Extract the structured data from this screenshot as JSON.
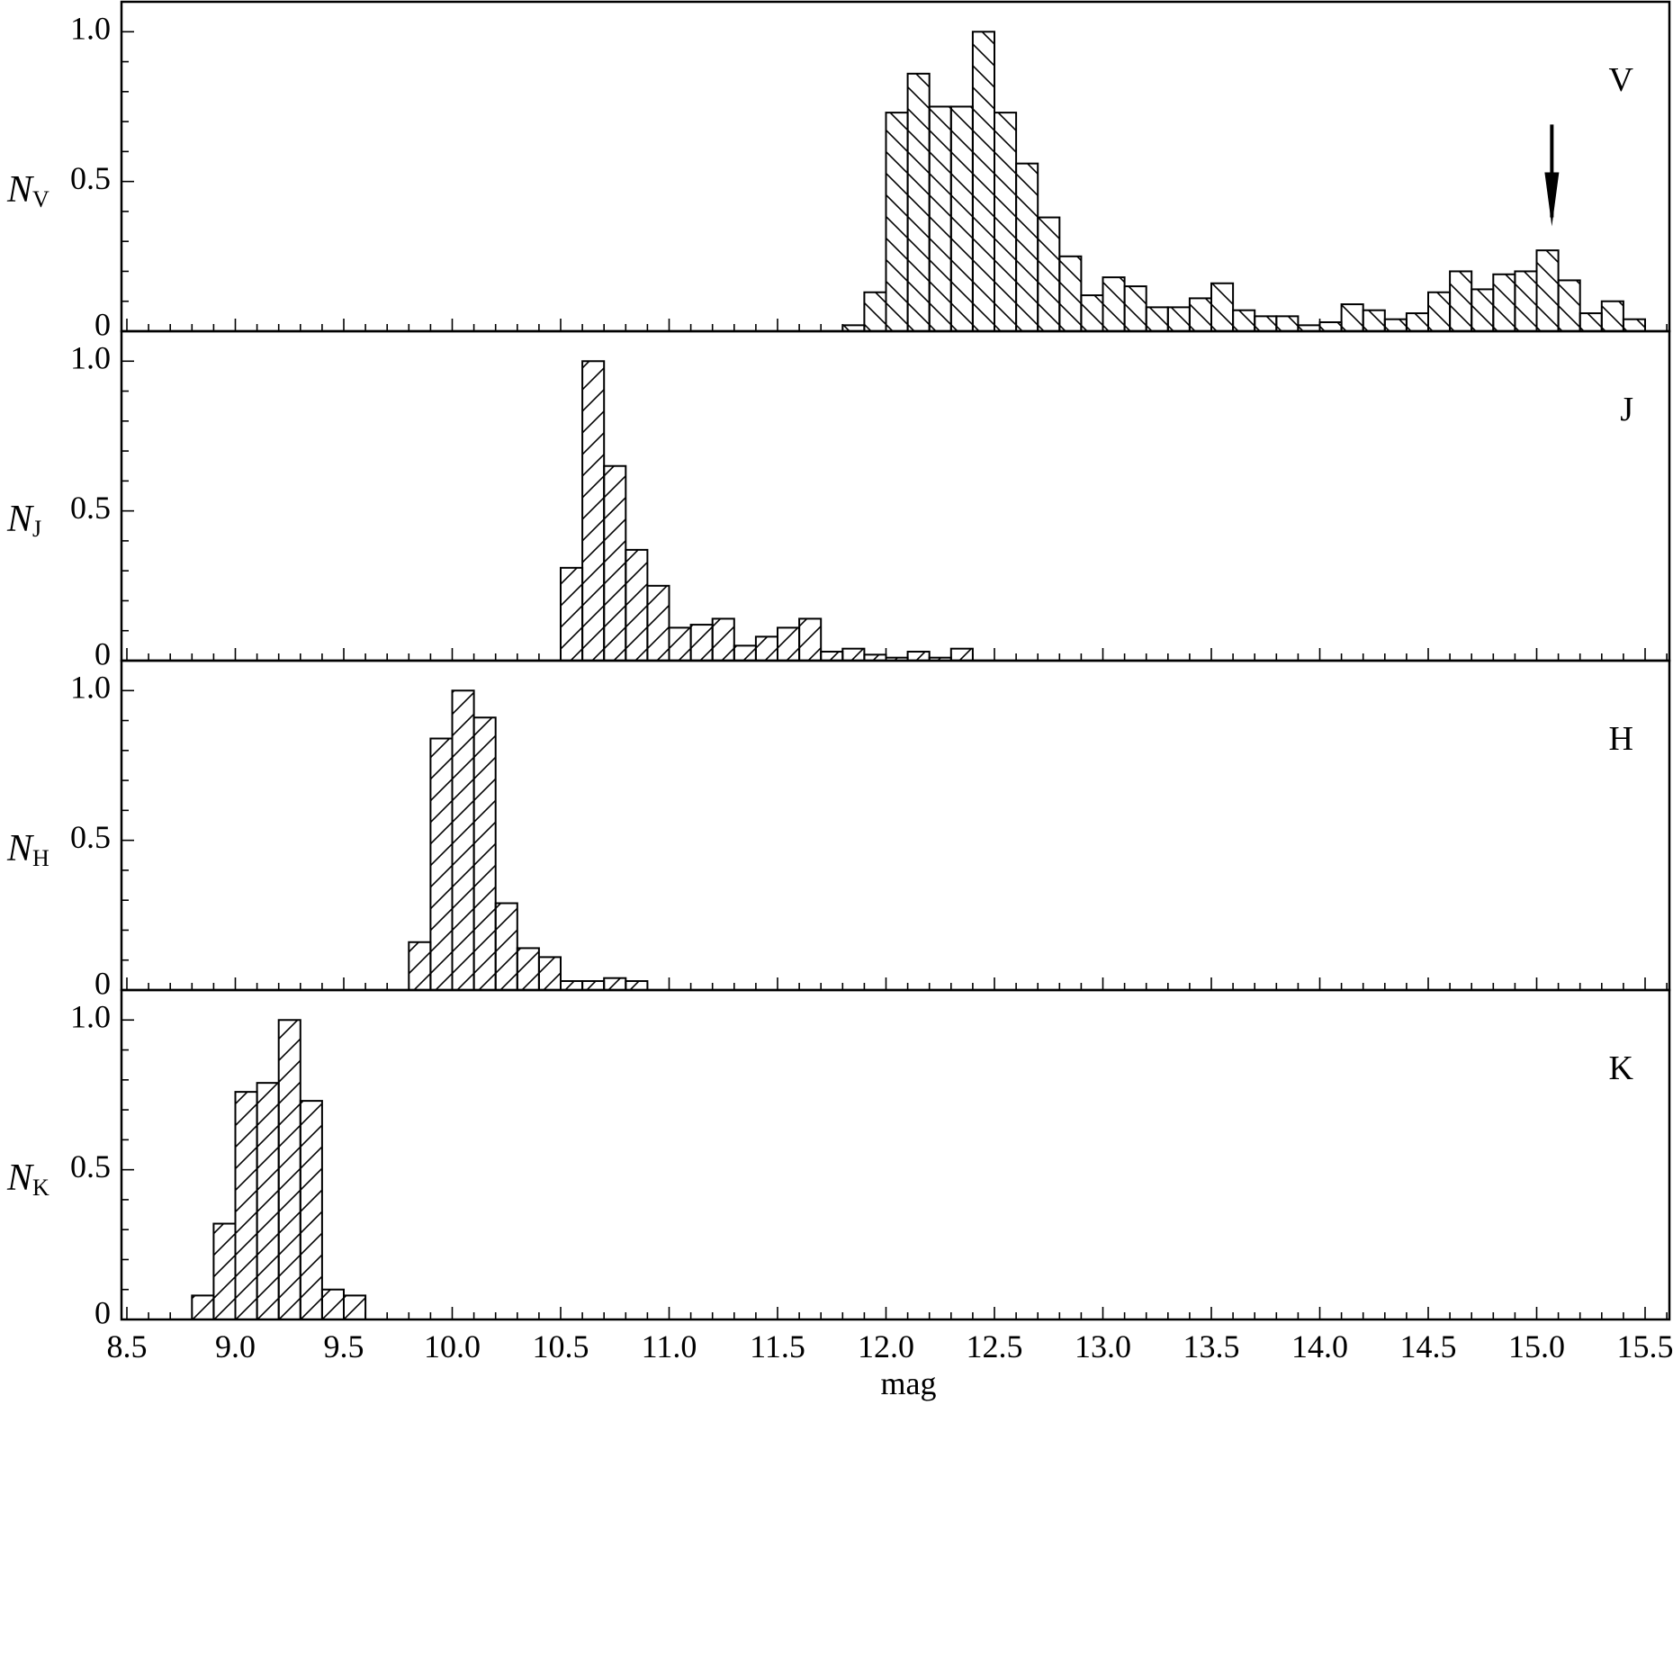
{
  "chart_data": {
    "type": "bar",
    "xlabel": "mag",
    "xlim": [
      8.5,
      15.7
    ],
    "xticks": [
      "8.5",
      "9.0",
      "9.5",
      "10.0",
      "10.5",
      "11.0",
      "11.5",
      "12.0",
      "12.5",
      "13.0",
      "13.5",
      "14.0",
      "14.5",
      "15.0",
      "15.5"
    ],
    "bin_width": 0.1,
    "ylim": [
      0,
      1.1
    ],
    "yticks": [
      "0",
      "0.5",
      "1.0"
    ],
    "grid": false,
    "annotations": [
      {
        "panel": "V",
        "type": "arrow-down",
        "x": 15.07,
        "y_from": 0.69,
        "y_to": 0.35
      }
    ],
    "panels": [
      {
        "name": "V",
        "ylabel": "N",
        "ylabel_sub": "V",
        "hatch": "backslash",
        "bins": [
          {
            "x": 11.85,
            "y": 0.02
          },
          {
            "x": 11.95,
            "y": 0.13
          },
          {
            "x": 12.05,
            "y": 0.73
          },
          {
            "x": 12.15,
            "y": 0.86
          },
          {
            "x": 12.25,
            "y": 0.75
          },
          {
            "x": 12.35,
            "y": 0.75
          },
          {
            "x": 12.45,
            "y": 1.0
          },
          {
            "x": 12.55,
            "y": 0.73
          },
          {
            "x": 12.65,
            "y": 0.56
          },
          {
            "x": 12.75,
            "y": 0.38
          },
          {
            "x": 12.85,
            "y": 0.25
          },
          {
            "x": 12.95,
            "y": 0.12
          },
          {
            "x": 13.05,
            "y": 0.18
          },
          {
            "x": 13.15,
            "y": 0.15
          },
          {
            "x": 13.25,
            "y": 0.08
          },
          {
            "x": 13.35,
            "y": 0.08
          },
          {
            "x": 13.45,
            "y": 0.11
          },
          {
            "x": 13.55,
            "y": 0.16
          },
          {
            "x": 13.65,
            "y": 0.07
          },
          {
            "x": 13.75,
            "y": 0.05
          },
          {
            "x": 13.85,
            "y": 0.05
          },
          {
            "x": 13.95,
            "y": 0.02
          },
          {
            "x": 14.05,
            "y": 0.03
          },
          {
            "x": 14.15,
            "y": 0.09
          },
          {
            "x": 14.25,
            "y": 0.07
          },
          {
            "x": 14.35,
            "y": 0.04
          },
          {
            "x": 14.45,
            "y": 0.06
          },
          {
            "x": 14.55,
            "y": 0.13
          },
          {
            "x": 14.65,
            "y": 0.2
          },
          {
            "x": 14.75,
            "y": 0.14
          },
          {
            "x": 14.85,
            "y": 0.19
          },
          {
            "x": 14.95,
            "y": 0.2
          },
          {
            "x": 15.05,
            "y": 0.27
          },
          {
            "x": 15.15,
            "y": 0.17
          },
          {
            "x": 15.25,
            "y": 0.06
          },
          {
            "x": 15.35,
            "y": 0.1
          },
          {
            "x": 15.45,
            "y": 0.04
          }
        ]
      },
      {
        "name": "J",
        "ylabel": "N",
        "ylabel_sub": "J",
        "hatch": "slash",
        "bins": [
          {
            "x": 10.55,
            "y": 0.31
          },
          {
            "x": 10.65,
            "y": 1.0
          },
          {
            "x": 10.75,
            "y": 0.65
          },
          {
            "x": 10.85,
            "y": 0.37
          },
          {
            "x": 10.95,
            "y": 0.25
          },
          {
            "x": 11.05,
            "y": 0.11
          },
          {
            "x": 11.15,
            "y": 0.12
          },
          {
            "x": 11.25,
            "y": 0.14
          },
          {
            "x": 11.35,
            "y": 0.05
          },
          {
            "x": 11.45,
            "y": 0.08
          },
          {
            "x": 11.55,
            "y": 0.11
          },
          {
            "x": 11.65,
            "y": 0.14
          },
          {
            "x": 11.75,
            "y": 0.03
          },
          {
            "x": 11.85,
            "y": 0.04
          },
          {
            "x": 11.95,
            "y": 0.02
          },
          {
            "x": 12.05,
            "y": 0.01
          },
          {
            "x": 12.15,
            "y": 0.03
          },
          {
            "x": 12.25,
            "y": 0.01
          },
          {
            "x": 12.35,
            "y": 0.04
          }
        ]
      },
      {
        "name": "H",
        "ylabel": "N",
        "ylabel_sub": "H",
        "hatch": "slash",
        "bins": [
          {
            "x": 9.85,
            "y": 0.16
          },
          {
            "x": 9.95,
            "y": 0.84
          },
          {
            "x": 10.05,
            "y": 1.0
          },
          {
            "x": 10.15,
            "y": 0.91
          },
          {
            "x": 10.25,
            "y": 0.29
          },
          {
            "x": 10.35,
            "y": 0.14
          },
          {
            "x": 10.45,
            "y": 0.11
          },
          {
            "x": 10.55,
            "y": 0.03
          },
          {
            "x": 10.65,
            "y": 0.03
          },
          {
            "x": 10.75,
            "y": 0.04
          },
          {
            "x": 10.85,
            "y": 0.03
          }
        ]
      },
      {
        "name": "K",
        "ylabel": "N",
        "ylabel_sub": "K",
        "hatch": "slash",
        "bins": [
          {
            "x": 8.85,
            "y": 0.08
          },
          {
            "x": 8.95,
            "y": 0.32
          },
          {
            "x": 9.05,
            "y": 0.76
          },
          {
            "x": 9.15,
            "y": 0.79
          },
          {
            "x": 9.25,
            "y": 1.0
          },
          {
            "x": 9.35,
            "y": 0.73
          },
          {
            "x": 9.45,
            "y": 0.1
          },
          {
            "x": 9.55,
            "y": 0.08
          }
        ]
      }
    ]
  }
}
